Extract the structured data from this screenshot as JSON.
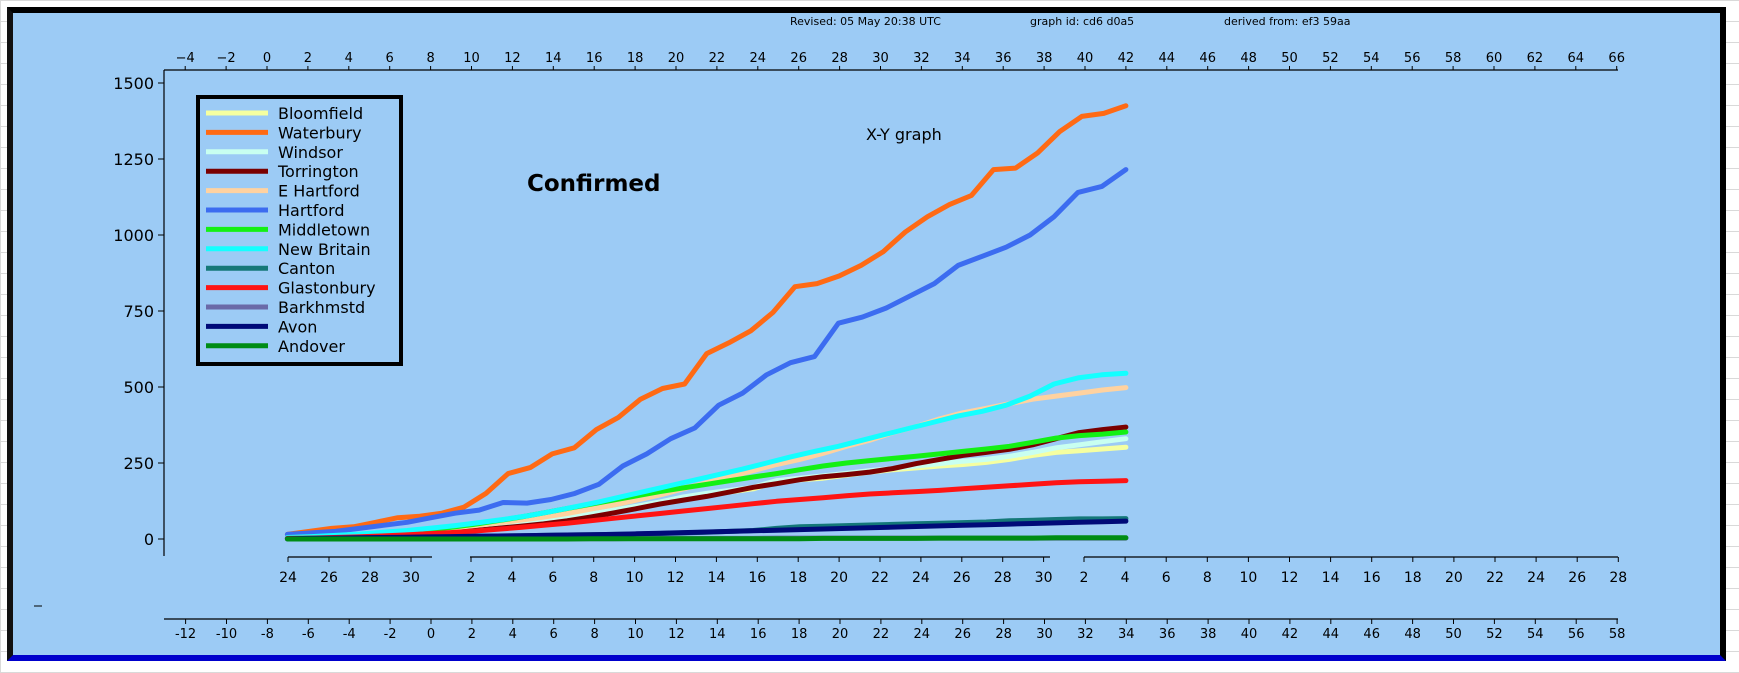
{
  "header": {
    "revised": "Revised: 05 May 20:38 UTC",
    "graph_id": "graph id: cd6 d0a5",
    "derived_from": "derived from: ef3 59aa"
  },
  "chart_data": {
    "type": "line",
    "title": "Confirmed",
    "subtitle": "X-Y graph",
    "legend_position": "top-left",
    "top_axis_ticks": [
      -4,
      -2,
      0,
      2,
      4,
      6,
      8,
      10,
      12,
      14,
      16,
      18,
      20,
      22,
      24,
      26,
      28,
      30,
      32,
      34,
      36,
      38,
      40,
      42,
      44,
      46,
      48,
      50,
      52,
      54,
      56,
      58,
      60,
      62,
      64,
      66
    ],
    "bottom_axis_ticks": [
      -12,
      -10,
      -8,
      -6,
      -4,
      -2,
      0,
      2,
      4,
      6,
      8,
      10,
      12,
      14,
      16,
      18,
      20,
      22,
      24,
      26,
      28,
      30,
      32,
      34,
      36,
      38,
      40,
      42,
      44,
      46,
      48,
      50,
      52,
      54,
      56,
      58
    ],
    "date_axis_ticks": [
      "24",
      "26",
      "28",
      "30",
      "2",
      "4",
      "6",
      "8",
      "10",
      "12",
      "14",
      "16",
      "18",
      "20",
      "22",
      "24",
      "26",
      "28",
      "30",
      "2",
      "4",
      "6",
      "8",
      "10",
      "12",
      "14",
      "16",
      "18",
      "20",
      "22",
      "24",
      "26",
      "28"
    ],
    "ylim": [
      0,
      1500
    ],
    "y_ticks": [
      0,
      250,
      500,
      750,
      1000,
      1250,
      1500
    ],
    "xlim_top": [
      -5,
      66
    ],
    "grid": false,
    "series_x_start": 1,
    "series_x_end": 42,
    "series": [
      {
        "name": "Bloomfield",
        "color": "#f5ffa0",
        "values": [
          2,
          4,
          6,
          9,
          12,
          16,
          20,
          25,
          30,
          37,
          45,
          55,
          68,
          80,
          92,
          105,
          120,
          135,
          148,
          155,
          165,
          188,
          195,
          200,
          210,
          220,
          228,
          234,
          240,
          245,
          252,
          262,
          275,
          285,
          290,
          296,
          302
        ]
      },
      {
        "name": "Waterbury",
        "color": "#ff6a14",
        "values": [
          15,
          25,
          35,
          40,
          55,
          70,
          75,
          85,
          105,
          150,
          215,
          235,
          280,
          300,
          360,
          400,
          460,
          495,
          510,
          610,
          645,
          685,
          745,
          830,
          840,
          865,
          900,
          945,
          1010,
          1060,
          1100,
          1130,
          1215,
          1220,
          1270,
          1340,
          1390,
          1400,
          1425
        ]
      },
      {
        "name": "Windsor",
        "color": "#c8fff0",
        "values": [
          3,
          5,
          7,
          10,
          14,
          18,
          22,
          26,
          32,
          40,
          48,
          58,
          70,
          82,
          95,
          108,
          122,
          138,
          150,
          160,
          170,
          192,
          200,
          208,
          216,
          225,
          232,
          240,
          248,
          256,
          262,
          272,
          285,
          300,
          310,
          320,
          330
        ]
      },
      {
        "name": "Torrington",
        "color": "#7a0000",
        "values": [
          2,
          3,
          5,
          7,
          10,
          14,
          18,
          22,
          28,
          35,
          42,
          50,
          60,
          72,
          86,
          100,
          115,
          128,
          140,
          155,
          170,
          182,
          195,
          205,
          212,
          220,
          232,
          248,
          262,
          275,
          285,
          295,
          310,
          330,
          350,
          360,
          368
        ]
      },
      {
        "name": "E Hartford",
        "color": "#ffd2a0",
        "values": [
          3,
          6,
          10,
          14,
          18,
          24,
          30,
          36,
          44,
          52,
          62,
          72,
          84,
          98,
          112,
          128,
          145,
          165,
          185,
          205,
          225,
          245,
          262,
          282,
          305,
          325,
          350,
          370,
          395,
          415,
          430,
          445,
          460,
          470,
          480,
          490,
          498
        ]
      },
      {
        "name": "Hartford",
        "color": "#3c6cf0",
        "values": [
          15,
          20,
          25,
          35,
          45,
          55,
          70,
          85,
          95,
          120,
          118,
          130,
          150,
          180,
          240,
          280,
          330,
          365,
          440,
          480,
          540,
          580,
          600,
          710,
          730,
          760,
          800,
          840,
          900,
          930,
          960,
          1000,
          1060,
          1140,
          1160,
          1215
        ]
      },
      {
        "name": "Middletown",
        "color": "#14f014",
        "values": [
          3,
          6,
          10,
          14,
          18,
          24,
          30,
          38,
          48,
          60,
          72,
          86,
          100,
          114,
          128,
          142,
          156,
          168,
          180,
          192,
          204,
          215,
          228,
          240,
          250,
          258,
          265,
          272,
          280,
          288,
          296,
          305,
          318,
          332,
          340,
          345,
          352
        ]
      },
      {
        "name": "New Britain",
        "color": "#14ffff",
        "values": [
          5,
          8,
          12,
          16,
          22,
          28,
          36,
          44,
          54,
          64,
          76,
          90,
          106,
          122,
          140,
          158,
          176,
          194,
          212,
          230,
          250,
          270,
          288,
          305,
          325,
          345,
          365,
          385,
          405,
          420,
          440,
          470,
          510,
          530,
          540,
          545
        ]
      },
      {
        "name": "Canton",
        "color": "#147878",
        "values": [
          1,
          2,
          3,
          4,
          5,
          6,
          7,
          8,
          9,
          10,
          11,
          12,
          13,
          14,
          15,
          16,
          18,
          20,
          22,
          25,
          28,
          35,
          40,
          42,
          44,
          46,
          48,
          50,
          52,
          54,
          56,
          60,
          62,
          64,
          66,
          66,
          67
        ]
      },
      {
        "name": "Glastonbury",
        "color": "#ff1414",
        "values": [
          2,
          3,
          5,
          7,
          10,
          13,
          17,
          21,
          26,
          32,
          38,
          45,
          52,
          60,
          68,
          76,
          84,
          92,
          100,
          108,
          116,
          124,
          130,
          136,
          142,
          148,
          152,
          156,
          160,
          165,
          170,
          175,
          180,
          185,
          188,
          190,
          192
        ]
      },
      {
        "name": "Barkhmstd",
        "color": "#6a6aa8",
        "values": [
          0,
          0,
          0,
          0,
          0,
          0,
          0,
          0,
          1,
          1,
          1,
          1,
          1,
          1,
          1,
          2,
          2,
          2,
          2,
          2,
          2,
          3,
          3,
          3,
          3,
          3,
          3,
          3,
          3,
          3,
          3,
          3,
          3,
          3,
          3,
          3,
          3
        ]
      },
      {
        "name": "Avon",
        "color": "#000a78",
        "values": [
          1,
          2,
          3,
          4,
          5,
          6,
          7,
          8,
          9,
          10,
          11,
          12,
          13,
          14,
          15,
          17,
          19,
          21,
          23,
          25,
          27,
          29,
          31,
          33,
          35,
          37,
          39,
          41,
          43,
          45,
          47,
          49,
          51,
          53,
          55,
          57,
          59
        ]
      },
      {
        "name": "Andover",
        "color": "#008c14",
        "values": [
          0,
          0,
          0,
          0,
          0,
          0,
          0,
          0,
          0,
          0,
          0,
          0,
          0,
          1,
          1,
          1,
          1,
          1,
          1,
          1,
          1,
          1,
          1,
          2,
          2,
          2,
          2,
          2,
          3,
          3,
          3,
          3,
          3,
          4,
          4,
          4,
          4
        ]
      }
    ]
  }
}
